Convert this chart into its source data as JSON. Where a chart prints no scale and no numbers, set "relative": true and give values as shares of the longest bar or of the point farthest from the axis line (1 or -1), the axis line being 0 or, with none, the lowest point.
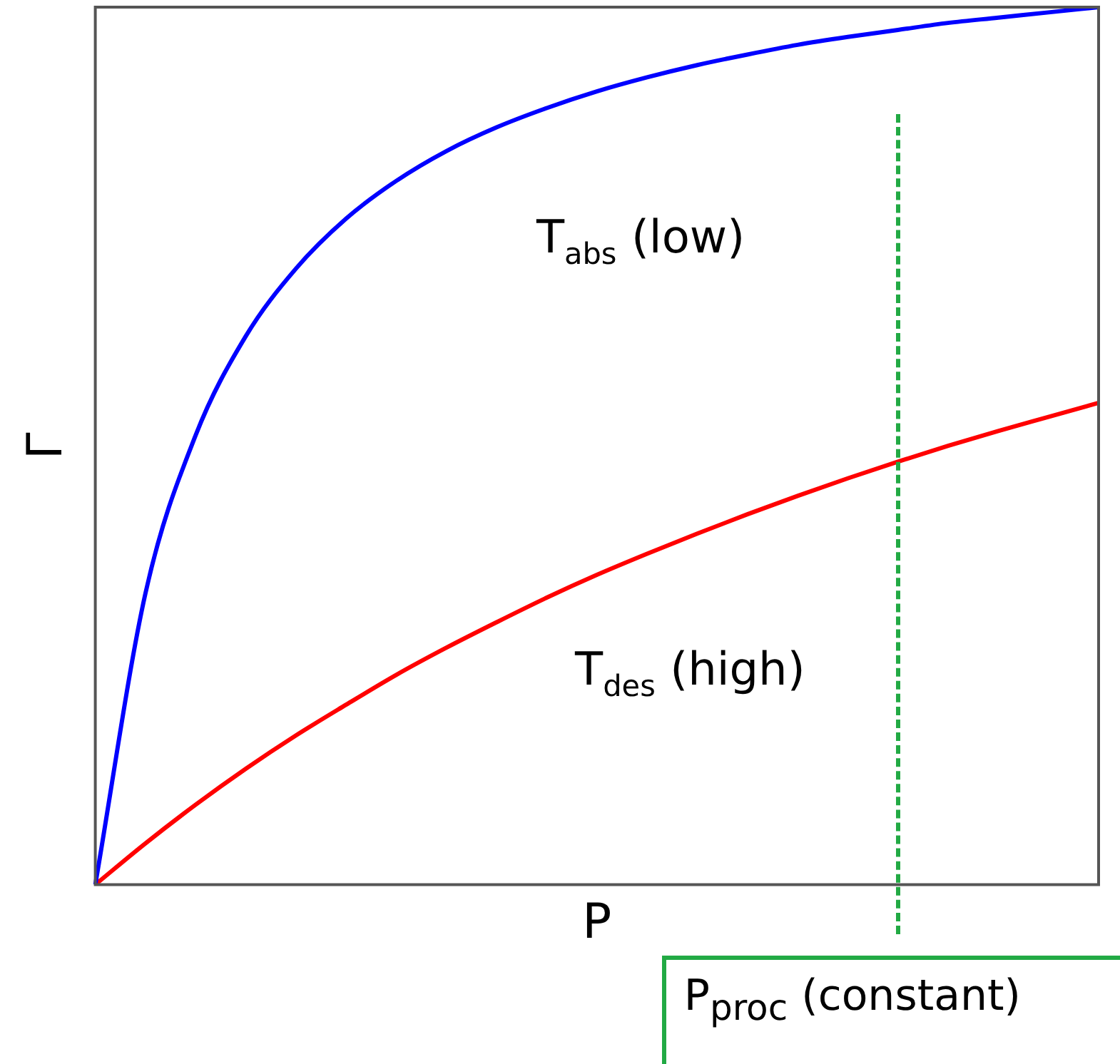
{
  "chart_data": {
    "type": "line",
    "relative": true,
    "xlabel": "P",
    "ylabel": "Γ",
    "tick_labels": false,
    "grid": false,
    "legend": false,
    "marker": "none",
    "categories": [
      null,
      null,
      null,
      null,
      null,
      null,
      null,
      null,
      null,
      null,
      null,
      null,
      null,
      null,
      null,
      null,
      null,
      null,
      null,
      null,
      null
    ],
    "series": [
      {
        "name": "T$_{abs}$ (low)",
        "color": "#0000ff",
        "values": [
          0,
          0.332,
          0.512,
          0.625,
          0.702,
          0.759,
          0.802,
          0.836,
          0.863,
          0.885,
          0.904,
          0.92,
          0.934,
          0.946,
          0.957,
          0.966,
          0.974,
          0.982,
          0.988,
          0.994,
          1
        ]
      },
      {
        "name": "T$_{des}$ (high)",
        "color": "#ff0000",
        "values": [
          0,
          0.047,
          0.091,
          0.132,
          0.17,
          0.205,
          0.239,
          0.27,
          0.299,
          0.327,
          0.353,
          0.377,
          0.4,
          0.422,
          0.443,
          0.463,
          0.482,
          0.5,
          0.517,
          0.533,
          0.549
        ]
      }
    ],
    "annotations": [
      "P$_{proc}$ (constant)"
    ]
  }
}
